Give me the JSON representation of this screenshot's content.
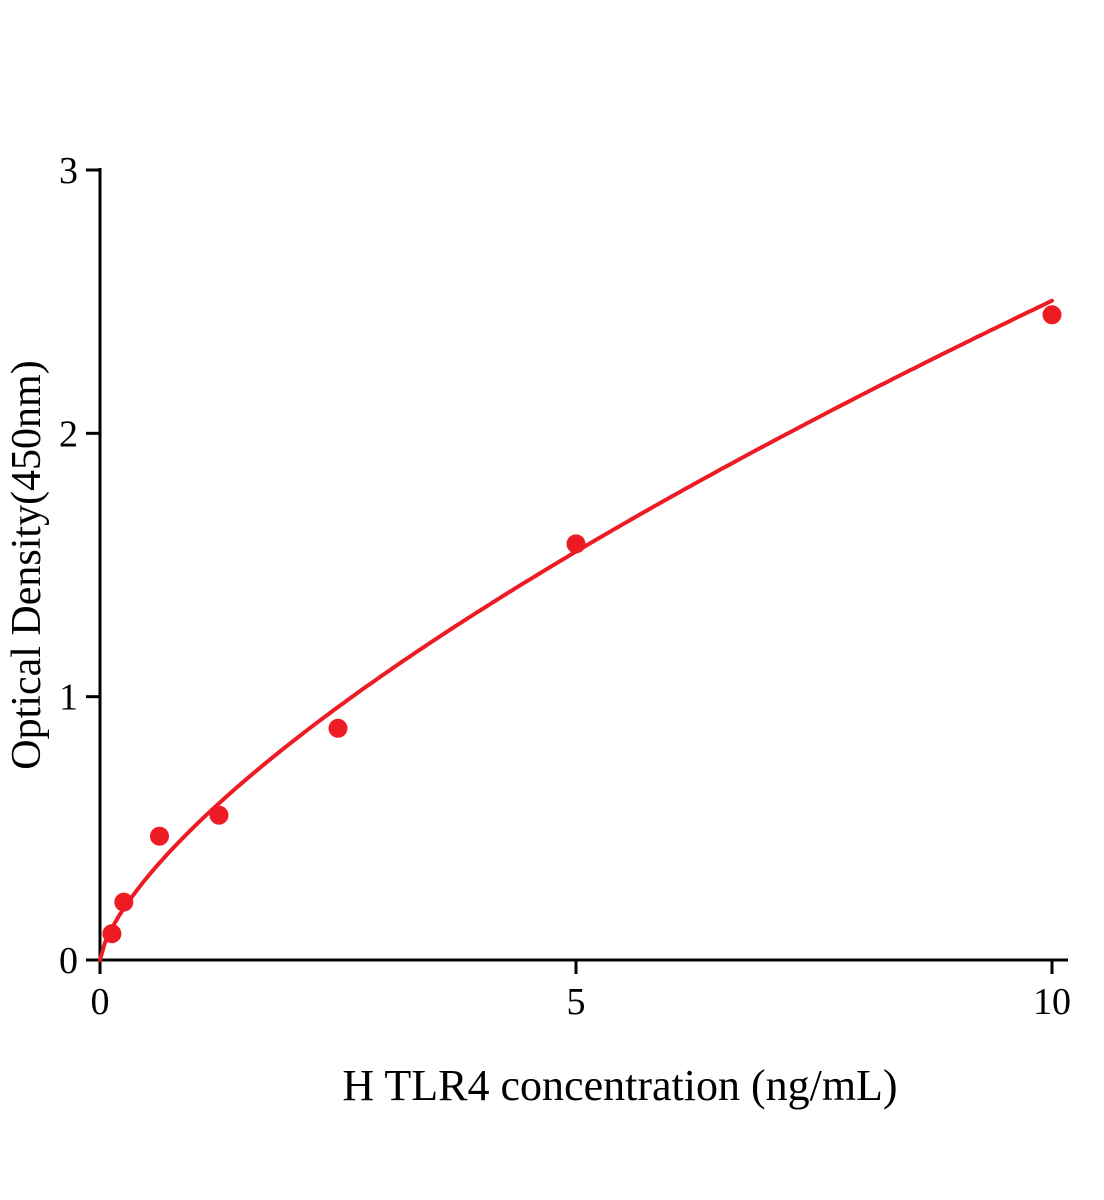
{
  "chart_data": {
    "type": "scatter",
    "title": "",
    "xlabel": "H TLR4 concentration (ng/mL)",
    "ylabel": "Optical Density(450nm)",
    "x": [
      0.125,
      0.25,
      0.625,
      1.25,
      2.5,
      5,
      10
    ],
    "y": [
      0.1,
      0.22,
      0.47,
      0.55,
      0.88,
      1.58,
      2.45
    ],
    "xlim": [
      0,
      10
    ],
    "ylim": [
      0,
      3
    ],
    "xticks": [
      0,
      5,
      10
    ],
    "yticks": [
      0,
      1,
      2,
      3
    ],
    "xtick_labels": [
      "0",
      "5",
      "10"
    ],
    "ytick_labels": [
      "0",
      "1",
      "2",
      "3"
    ],
    "grid": false,
    "legend": null,
    "point_color": "#ed1b24",
    "line_color": "#ed1b24",
    "axis_color": "#000000",
    "fit_curve": {
      "type": "power",
      "a": 0.51,
      "b": 0.691,
      "x_start": 0,
      "x_end": 10
    }
  }
}
